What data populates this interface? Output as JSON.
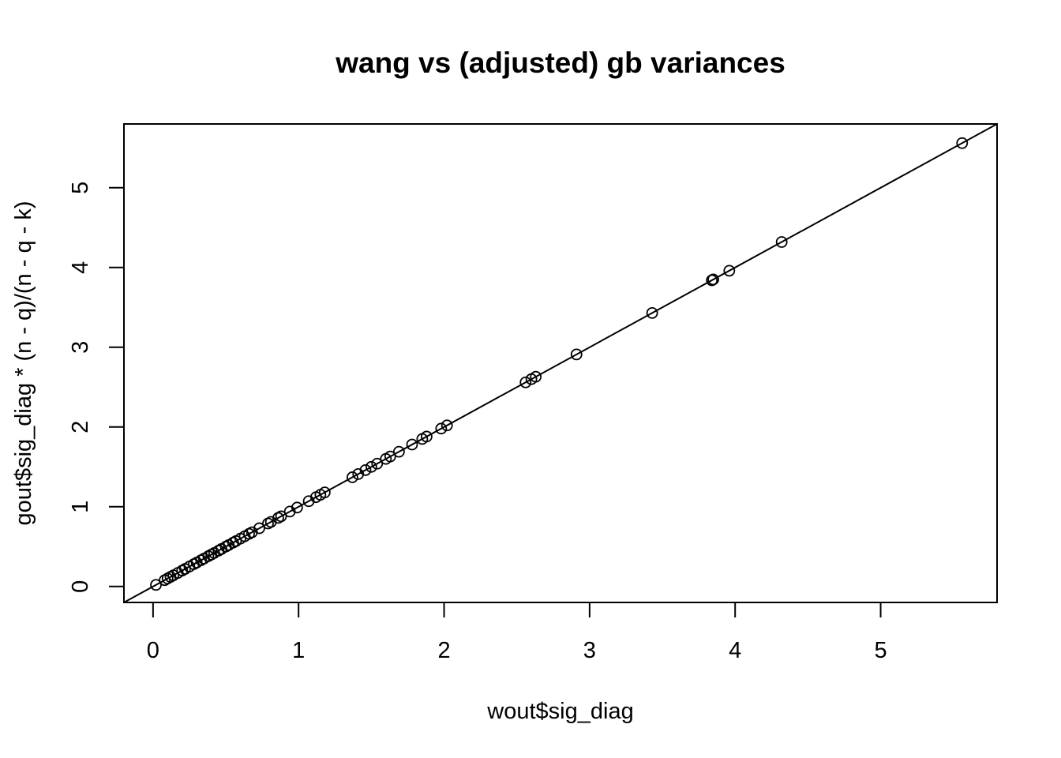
{
  "chart_data": {
    "type": "scatter",
    "title": "wang vs (adjusted) gb variances",
    "xlabel": "wout$sig_diag",
    "ylabel": "gout$sig_diag * (n - q)/(n - q - k)",
    "xlim": [
      -0.2,
      5.8
    ],
    "ylim": [
      -0.2,
      5.8
    ],
    "xticks": [
      "0",
      "1",
      "2",
      "3",
      "4",
      "5"
    ],
    "yticks": [
      "0",
      "1",
      "2",
      "3",
      "4",
      "5"
    ],
    "grid": false,
    "reference_line": {
      "intercept": 0,
      "slope": 1
    },
    "x": [
      0.02,
      0.08,
      0.1,
      0.12,
      0.14,
      0.17,
      0.2,
      0.22,
      0.25,
      0.28,
      0.3,
      0.33,
      0.35,
      0.38,
      0.4,
      0.42,
      0.45,
      0.47,
      0.5,
      0.52,
      0.55,
      0.57,
      0.6,
      0.63,
      0.66,
      0.68,
      0.73,
      0.79,
      0.81,
      0.86,
      0.88,
      0.94,
      0.99,
      1.07,
      1.12,
      1.15,
      1.18,
      1.37,
      1.41,
      1.46,
      1.5,
      1.54,
      1.6,
      1.63,
      1.69,
      1.78,
      1.85,
      1.88,
      1.98,
      2.02,
      2.56,
      2.6,
      2.63,
      2.91,
      3.43,
      3.84,
      3.85,
      3.96,
      4.32,
      5.56
    ],
    "y": [
      0.02,
      0.08,
      0.1,
      0.12,
      0.14,
      0.17,
      0.2,
      0.22,
      0.25,
      0.28,
      0.3,
      0.33,
      0.35,
      0.38,
      0.4,
      0.42,
      0.45,
      0.47,
      0.5,
      0.52,
      0.55,
      0.57,
      0.6,
      0.63,
      0.66,
      0.68,
      0.73,
      0.79,
      0.81,
      0.86,
      0.88,
      0.94,
      0.99,
      1.07,
      1.12,
      1.15,
      1.18,
      1.37,
      1.41,
      1.46,
      1.5,
      1.54,
      1.6,
      1.63,
      1.69,
      1.78,
      1.85,
      1.88,
      1.98,
      2.02,
      2.56,
      2.6,
      2.63,
      2.91,
      3.43,
      3.84,
      3.85,
      3.96,
      4.32,
      5.56
    ]
  }
}
